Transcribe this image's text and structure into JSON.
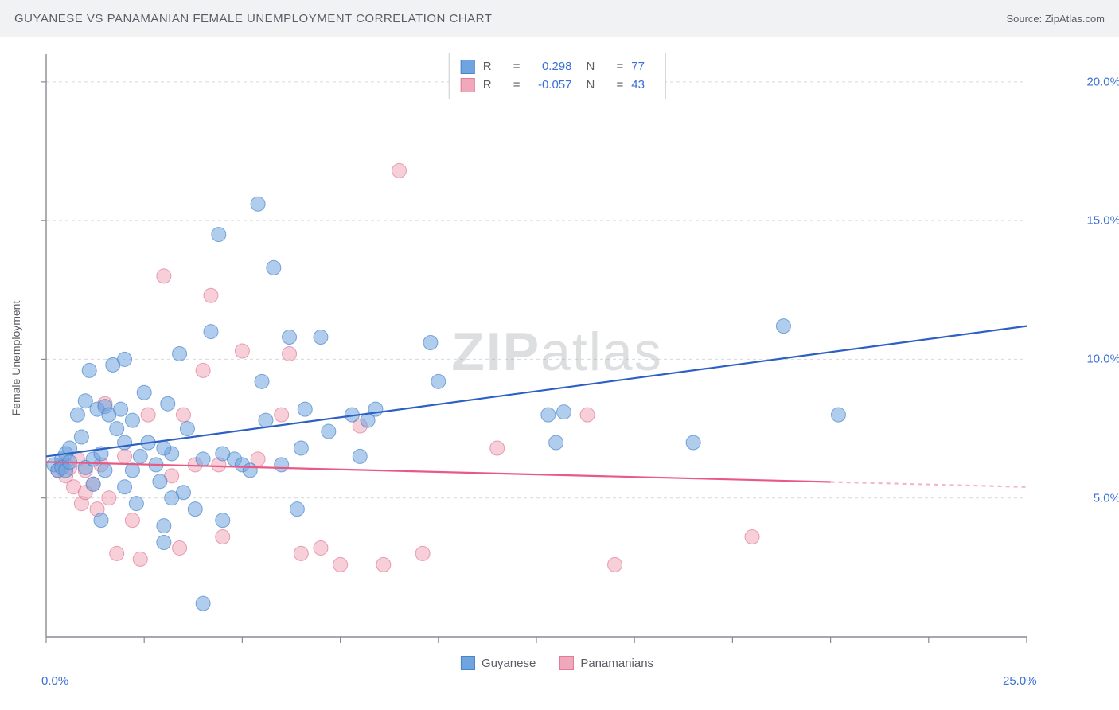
{
  "header": {
    "title": "GUYANESE VS PANAMANIAN FEMALE UNEMPLOYMENT CORRELATION CHART",
    "source": "Source: ZipAtlas.com"
  },
  "watermark": {
    "bold": "ZIP",
    "rest": "atlas"
  },
  "chart": {
    "type": "scatter",
    "y_label": "Female Unemployment",
    "background_color": "#ffffff",
    "grid_color": "#d7d9dd",
    "grid_dash": "4,4",
    "axis_color": "#888b92",
    "xlim": [
      0,
      25
    ],
    "ylim": [
      0,
      21
    ],
    "x_ticks": [
      0,
      2.5,
      5,
      7.5,
      10,
      12.5,
      15,
      17.5,
      20,
      22.5,
      25
    ],
    "x_tick_labels": {
      "0": "0.0%",
      "25": "25.0%"
    },
    "x_tick_label_color": "#3a6fd8",
    "y_gridlines": [
      5,
      10,
      15,
      20
    ],
    "y_tick_labels": {
      "5": "5.0%",
      "10": "10.0%",
      "15": "15.0%",
      "20": "20.0%"
    },
    "y_tick_label_color": "#3a6fd8",
    "marker_radius": 9,
    "marker_opacity": 0.55,
    "series": [
      {
        "name": "Guyanese",
        "color": "#6fa4e0",
        "stroke": "#4a84c8",
        "R": "0.298",
        "N": "77",
        "trend": {
          "x1": 0,
          "y1": 6.5,
          "x2": 25,
          "y2": 11.2,
          "color": "#2d5fc4",
          "width": 2.2,
          "solid_until": 25
        },
        "points": [
          [
            0.2,
            6.2
          ],
          [
            0.3,
            6.0
          ],
          [
            0.4,
            6.4
          ],
          [
            0.4,
            6.1
          ],
          [
            0.5,
            6.6
          ],
          [
            0.5,
            6.0
          ],
          [
            0.6,
            6.3
          ],
          [
            0.6,
            6.8
          ],
          [
            0.8,
            8.0
          ],
          [
            0.9,
            7.2
          ],
          [
            1.0,
            6.1
          ],
          [
            1.0,
            8.5
          ],
          [
            1.1,
            9.6
          ],
          [
            1.2,
            5.5
          ],
          [
            1.2,
            6.4
          ],
          [
            1.3,
            8.2
          ],
          [
            1.4,
            4.2
          ],
          [
            1.5,
            8.3
          ],
          [
            1.5,
            6.0
          ],
          [
            1.6,
            8.0
          ],
          [
            1.7,
            9.8
          ],
          [
            1.8,
            7.5
          ],
          [
            1.9,
            8.2
          ],
          [
            2.0,
            10.0
          ],
          [
            2.0,
            5.4
          ],
          [
            2.2,
            6.0
          ],
          [
            2.2,
            7.8
          ],
          [
            2.3,
            4.8
          ],
          [
            2.4,
            6.5
          ],
          [
            2.5,
            8.8
          ],
          [
            2.6,
            7.0
          ],
          [
            2.8,
            6.2
          ],
          [
            2.9,
            5.6
          ],
          [
            3.0,
            4.0
          ],
          [
            3.0,
            3.4
          ],
          [
            3.1,
            8.4
          ],
          [
            3.2,
            6.6
          ],
          [
            3.4,
            10.2
          ],
          [
            3.5,
            5.2
          ],
          [
            3.6,
            7.5
          ],
          [
            3.8,
            4.6
          ],
          [
            4.0,
            6.4
          ],
          [
            4.0,
            1.2
          ],
          [
            4.2,
            11.0
          ],
          [
            4.4,
            14.5
          ],
          [
            4.5,
            4.2
          ],
          [
            4.8,
            6.4
          ],
          [
            5.0,
            6.2
          ],
          [
            5.2,
            6.0
          ],
          [
            5.4,
            15.6
          ],
          [
            5.5,
            9.2
          ],
          [
            5.6,
            7.8
          ],
          [
            5.8,
            13.3
          ],
          [
            6.0,
            6.2
          ],
          [
            6.2,
            10.8
          ],
          [
            6.4,
            4.6
          ],
          [
            6.5,
            6.8
          ],
          [
            6.6,
            8.2
          ],
          [
            7.0,
            10.8
          ],
          [
            7.2,
            7.4
          ],
          [
            7.8,
            8.0
          ],
          [
            8.0,
            6.5
          ],
          [
            8.2,
            7.8
          ],
          [
            8.4,
            8.2
          ],
          [
            9.8,
            10.6
          ],
          [
            10.0,
            9.2
          ],
          [
            12.8,
            8.0
          ],
          [
            13.0,
            7.0
          ],
          [
            13.2,
            8.1
          ],
          [
            16.5,
            7.0
          ],
          [
            18.8,
            11.2
          ],
          [
            20.2,
            8.0
          ],
          [
            3.0,
            6.8
          ],
          [
            2.0,
            7.0
          ],
          [
            1.4,
            6.6
          ],
          [
            4.5,
            6.6
          ],
          [
            3.2,
            5.0
          ]
        ]
      },
      {
        "name": "Panamanians",
        "color": "#f0a8ba",
        "stroke": "#e07a95",
        "R": "-0.057",
        "N": "43",
        "trend": {
          "x1": 0,
          "y1": 6.3,
          "x2": 25,
          "y2": 5.4,
          "color": "#e85a85",
          "width": 2.2,
          "solid_until": 20
        },
        "points": [
          [
            0.3,
            6.0
          ],
          [
            0.4,
            6.2
          ],
          [
            0.5,
            5.8
          ],
          [
            0.6,
            6.1
          ],
          [
            0.7,
            5.4
          ],
          [
            0.8,
            6.4
          ],
          [
            0.9,
            4.8
          ],
          [
            1.0,
            5.2
          ],
          [
            1.0,
            6.0
          ],
          [
            1.2,
            5.5
          ],
          [
            1.3,
            4.6
          ],
          [
            1.4,
            6.2
          ],
          [
            1.5,
            8.4
          ],
          [
            1.6,
            5.0
          ],
          [
            1.8,
            3.0
          ],
          [
            2.0,
            6.5
          ],
          [
            2.2,
            4.2
          ],
          [
            2.4,
            2.8
          ],
          [
            2.6,
            8.0
          ],
          [
            3.0,
            13.0
          ],
          [
            3.2,
            5.8
          ],
          [
            3.4,
            3.2
          ],
          [
            3.5,
            8.0
          ],
          [
            3.8,
            6.2
          ],
          [
            4.0,
            9.6
          ],
          [
            4.2,
            12.3
          ],
          [
            4.5,
            3.6
          ],
          [
            5.0,
            10.3
          ],
          [
            5.4,
            6.4
          ],
          [
            6.0,
            8.0
          ],
          [
            6.2,
            10.2
          ],
          [
            6.5,
            3.0
          ],
          [
            7.0,
            3.2
          ],
          [
            7.5,
            2.6
          ],
          [
            8.0,
            7.6
          ],
          [
            8.6,
            2.6
          ],
          [
            9.0,
            16.8
          ],
          [
            9.6,
            3.0
          ],
          [
            11.5,
            6.8
          ],
          [
            13.8,
            8.0
          ],
          [
            14.5,
            2.6
          ],
          [
            18.0,
            3.6
          ],
          [
            4.4,
            6.2
          ]
        ]
      }
    ],
    "stats_value_color": "#3a6fd8",
    "stats_label_color": "#5a5d63"
  }
}
